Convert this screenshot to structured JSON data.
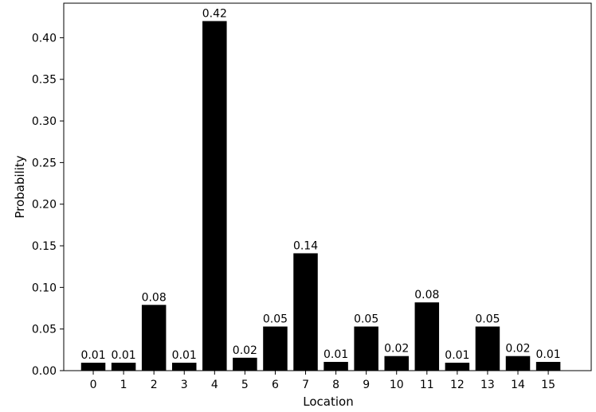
{
  "chart_data": {
    "type": "bar",
    "title": "",
    "xlabel": "Location",
    "ylabel": "Probability",
    "categories": [
      "0",
      "1",
      "2",
      "3",
      "4",
      "5",
      "6",
      "7",
      "8",
      "9",
      "10",
      "11",
      "12",
      "13",
      "14",
      "15"
    ],
    "values": [
      0.0095,
      0.0095,
      0.079,
      0.0095,
      0.42,
      0.0155,
      0.053,
      0.141,
      0.0105,
      0.053,
      0.0175,
      0.082,
      0.0095,
      0.053,
      0.0175,
      0.0105
    ],
    "data_labels": [
      "0.01",
      "0.01",
      "0.08",
      "0.01",
      "0.42",
      "0.02",
      "0.05",
      "0.14",
      "0.01",
      "0.05",
      "0.02",
      "0.08",
      "0.01",
      "0.05",
      "0.02",
      "0.01"
    ],
    "ylim": [
      0,
      0.4415
    ],
    "yticks": [
      0.0,
      0.05,
      0.1,
      0.15,
      0.2,
      0.25,
      0.3,
      0.35,
      0.4
    ],
    "ytick_labels": [
      "0.00",
      "0.05",
      "0.10",
      "0.15",
      "0.20",
      "0.25",
      "0.30",
      "0.35",
      "0.40"
    ],
    "bar_color": "#000000",
    "grid": false,
    "legend": "none"
  }
}
